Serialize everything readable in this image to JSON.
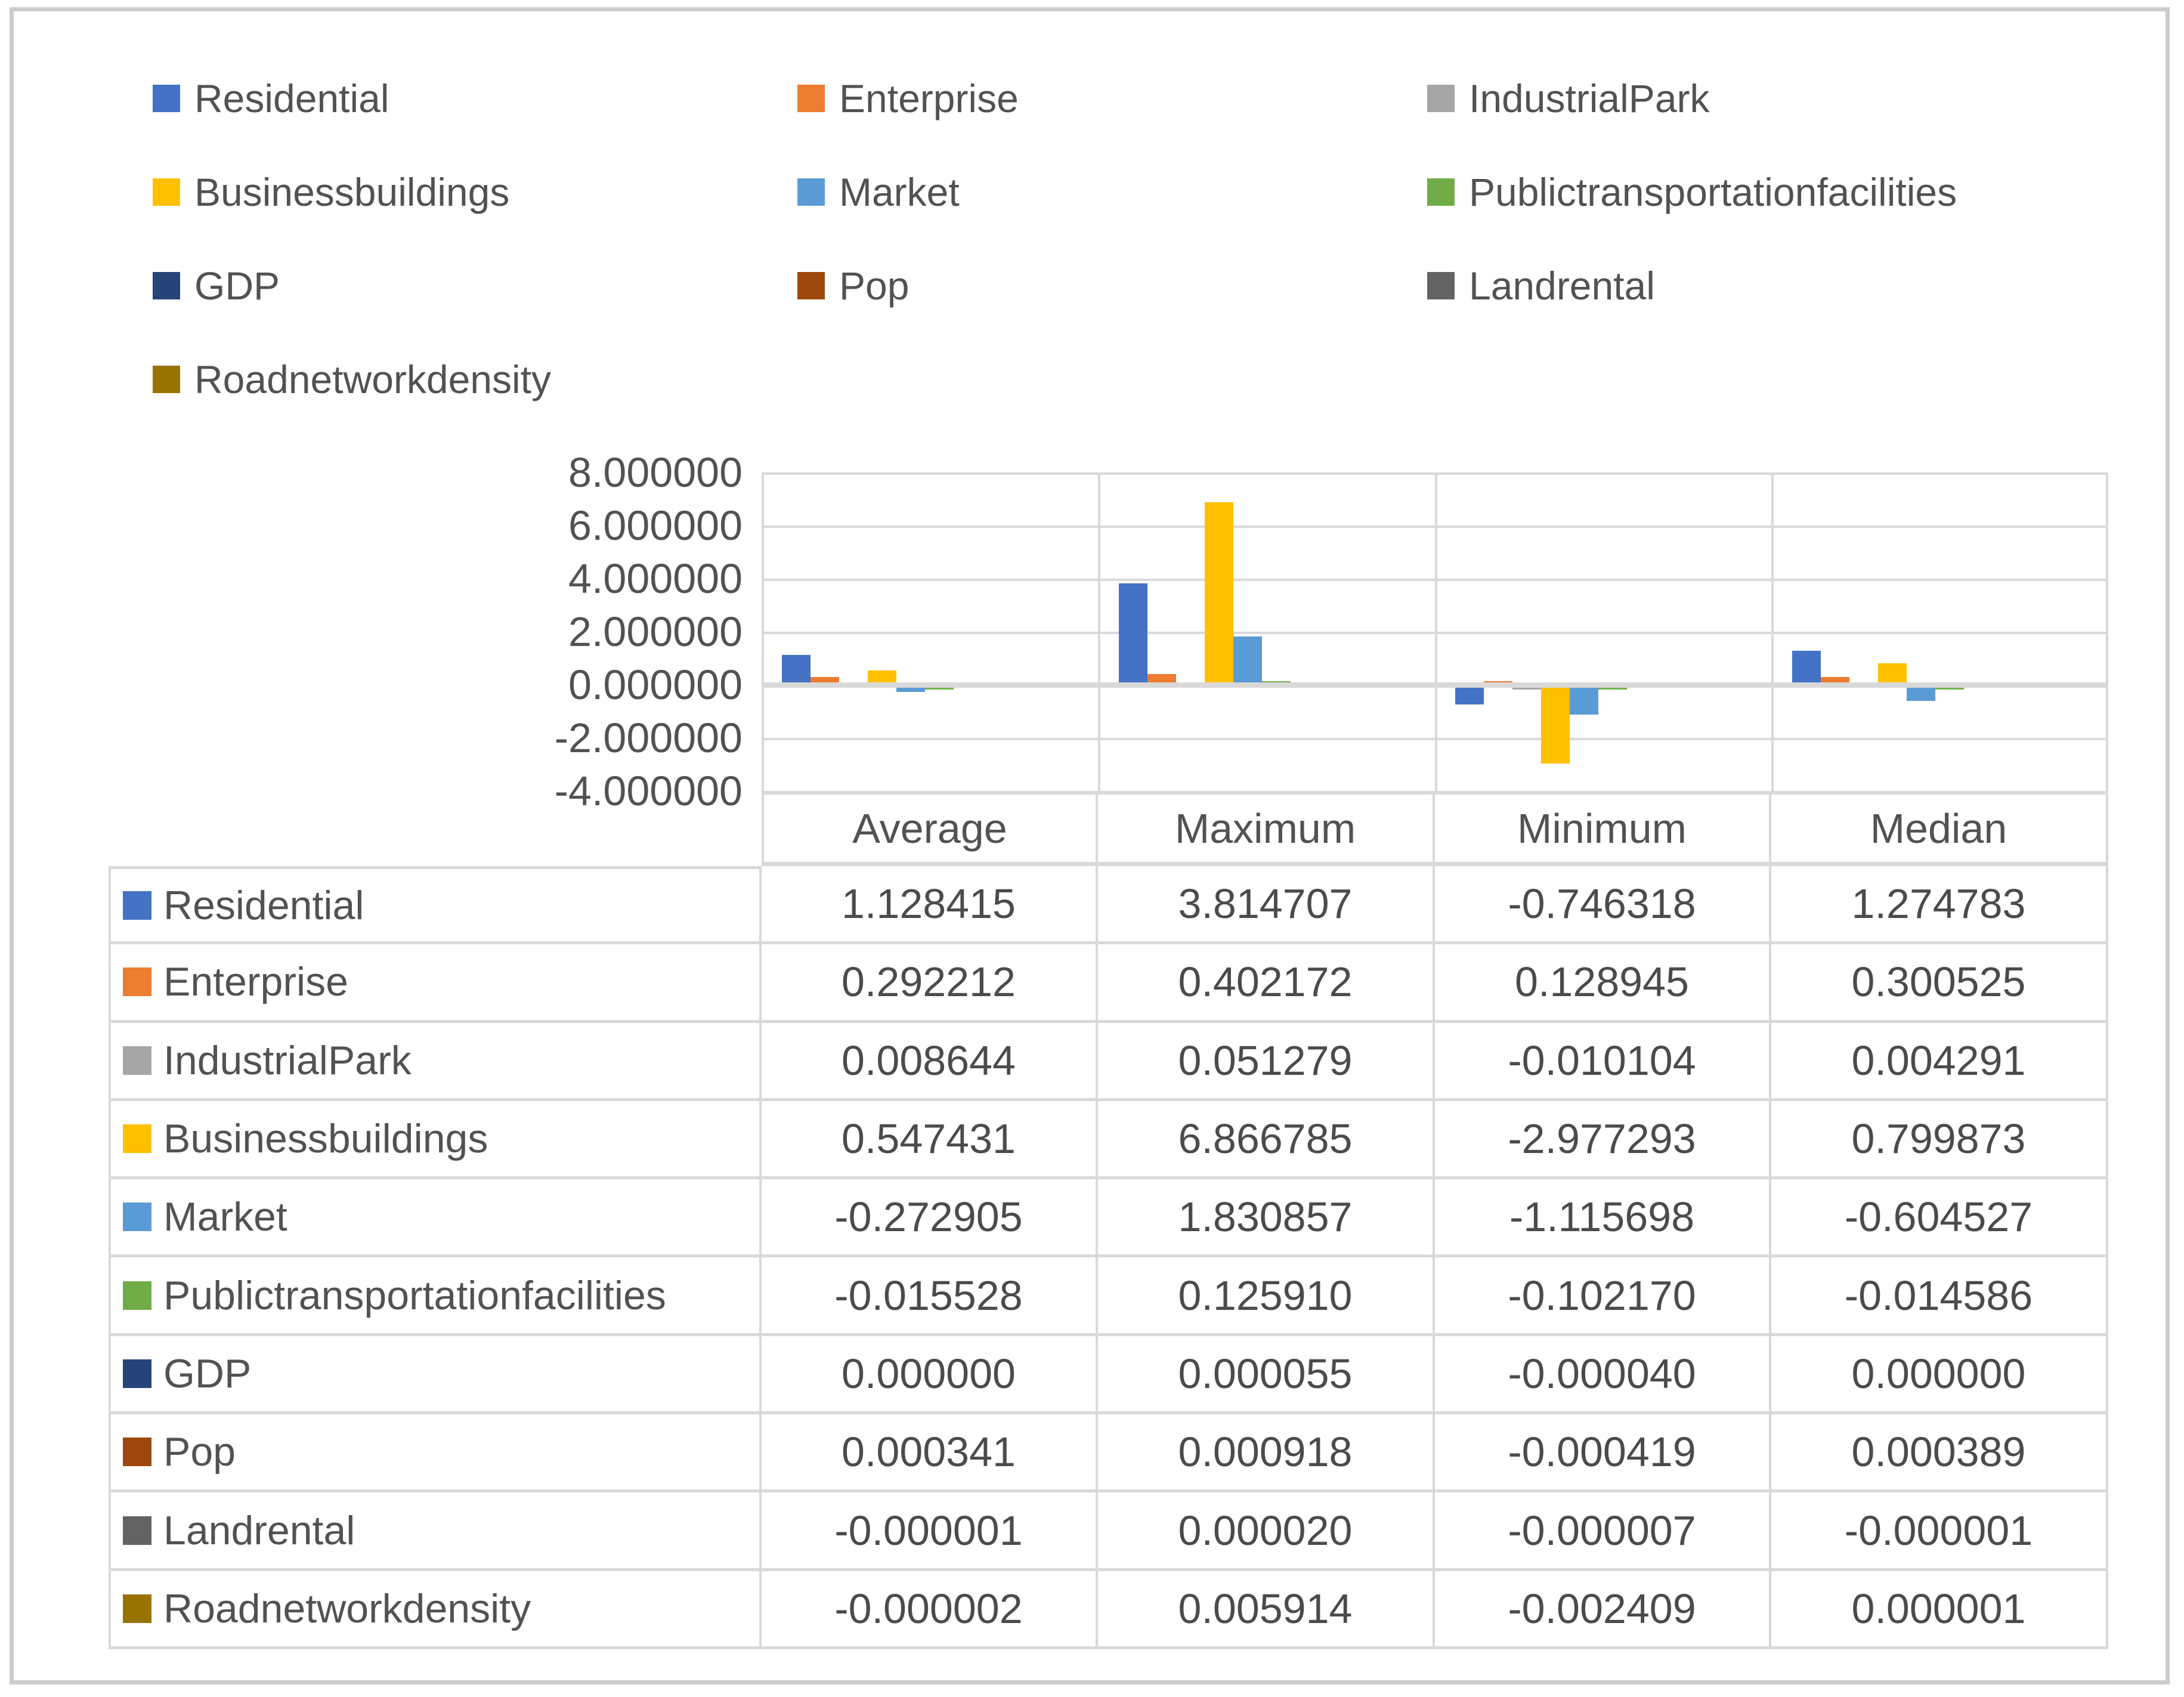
{
  "colors": {
    "grid": "#d9d9d9",
    "frame": "#cccccc",
    "text": "#525252"
  },
  "legend": {
    "items": [
      {
        "label": "Residential",
        "color": "#4472C4"
      },
      {
        "label": "Enterprise",
        "color": "#ED7D31"
      },
      {
        "label": "IndustrialPark",
        "color": "#A5A5A5"
      },
      {
        "label": "Businessbuildings",
        "color": "#FFC000"
      },
      {
        "label": "Market",
        "color": "#5B9BD5"
      },
      {
        "label": "Publictransportationfacilities",
        "color": "#70AD47"
      },
      {
        "label": "GDP",
        "color": "#264478"
      },
      {
        "label": "Pop",
        "color": "#9E480E"
      },
      {
        "label": "Landrental",
        "color": "#636363"
      },
      {
        "label": "Roadnetworkdensity",
        "color": "#997300"
      }
    ]
  },
  "chart_data": {
    "type": "bar",
    "categories": [
      "Average",
      "Maximum",
      "Minimum",
      "Median"
    ],
    "series": [
      {
        "name": "Residential",
        "color": "#4472C4",
        "values": [
          1.128415,
          3.814707,
          -0.746318,
          1.274783
        ]
      },
      {
        "name": "Enterprise",
        "color": "#ED7D31",
        "values": [
          0.292212,
          0.402172,
          0.128945,
          0.300525
        ]
      },
      {
        "name": "IndustrialPark",
        "color": "#A5A5A5",
        "values": [
          0.008644,
          0.051279,
          -0.010104,
          0.004291
        ]
      },
      {
        "name": "Businessbuildings",
        "color": "#FFC000",
        "values": [
          0.547431,
          6.866785,
          -2.977293,
          0.799873
        ]
      },
      {
        "name": "Market",
        "color": "#5B9BD5",
        "values": [
          -0.272905,
          1.830857,
          -1.115698,
          -0.604527
        ]
      },
      {
        "name": "Publictransportationfacilities",
        "color": "#70AD47",
        "values": [
          -0.015528,
          0.12591,
          -0.10217,
          -0.014586
        ]
      },
      {
        "name": "GDP",
        "color": "#264478",
        "values": [
          0.0,
          5.5e-05,
          -4e-05,
          0.0
        ]
      },
      {
        "name": "Pop",
        "color": "#9E480E",
        "values": [
          0.000341,
          0.000918,
          -0.000419,
          0.000389
        ]
      },
      {
        "name": "Landrental",
        "color": "#636363",
        "values": [
          -1e-06,
          2e-05,
          -7e-06,
          -1e-06
        ]
      },
      {
        "name": "Roadnetworkdensity",
        "color": "#997300",
        "values": [
          -2e-06,
          0.005914,
          -0.002409,
          1e-06
        ]
      }
    ],
    "ylim": [
      -4,
      8
    ],
    "yticks": [
      8,
      6,
      4,
      2,
      0,
      -2,
      -4
    ],
    "ytick_labels": [
      "8.000000",
      "6.000000",
      "4.000000",
      "2.000000",
      "0.000000",
      "-2.000000",
      "-4.000000"
    ],
    "grid": true,
    "legend_position": "top",
    "title": "",
    "xlabel": "",
    "ylabel": ""
  },
  "table": {
    "columns": [
      "Average",
      "Maximum",
      "Minimum",
      "Median"
    ],
    "rows": [
      {
        "name": "Residential",
        "color": "#4472C4",
        "cells": [
          "1.128415",
          "3.814707",
          "-0.746318",
          "1.274783"
        ]
      },
      {
        "name": "Enterprise",
        "color": "#ED7D31",
        "cells": [
          "0.292212",
          "0.402172",
          "0.128945",
          "0.300525"
        ]
      },
      {
        "name": "IndustrialPark",
        "color": "#A5A5A5",
        "cells": [
          "0.008644",
          "0.051279",
          "-0.010104",
          "0.004291"
        ]
      },
      {
        "name": "Businessbuildings",
        "color": "#FFC000",
        "cells": [
          "0.547431",
          "6.866785",
          "-2.977293",
          "0.799873"
        ]
      },
      {
        "name": "Market",
        "color": "#5B9BD5",
        "cells": [
          "-0.272905",
          "1.830857",
          "-1.115698",
          "-0.604527"
        ]
      },
      {
        "name": "Publictransportationfacilities",
        "color": "#70AD47",
        "cells": [
          "-0.015528",
          "0.125910",
          "-0.102170",
          "-0.014586"
        ]
      },
      {
        "name": "GDP",
        "color": "#264478",
        "cells": [
          "0.000000",
          "0.000055",
          "-0.000040",
          "0.000000"
        ]
      },
      {
        "name": "Pop",
        "color": "#9E480E",
        "cells": [
          "0.000341",
          "0.000918",
          "-0.000419",
          "0.000389"
        ]
      },
      {
        "name": "Landrental",
        "color": "#636363",
        "cells": [
          "-0.000001",
          "0.000020",
          "-0.000007",
          "-0.000001"
        ]
      },
      {
        "name": "Roadnetworkdensity",
        "color": "#997300",
        "cells": [
          "-0.000002",
          "0.005914",
          "-0.002409",
          "0.000001"
        ]
      }
    ]
  }
}
